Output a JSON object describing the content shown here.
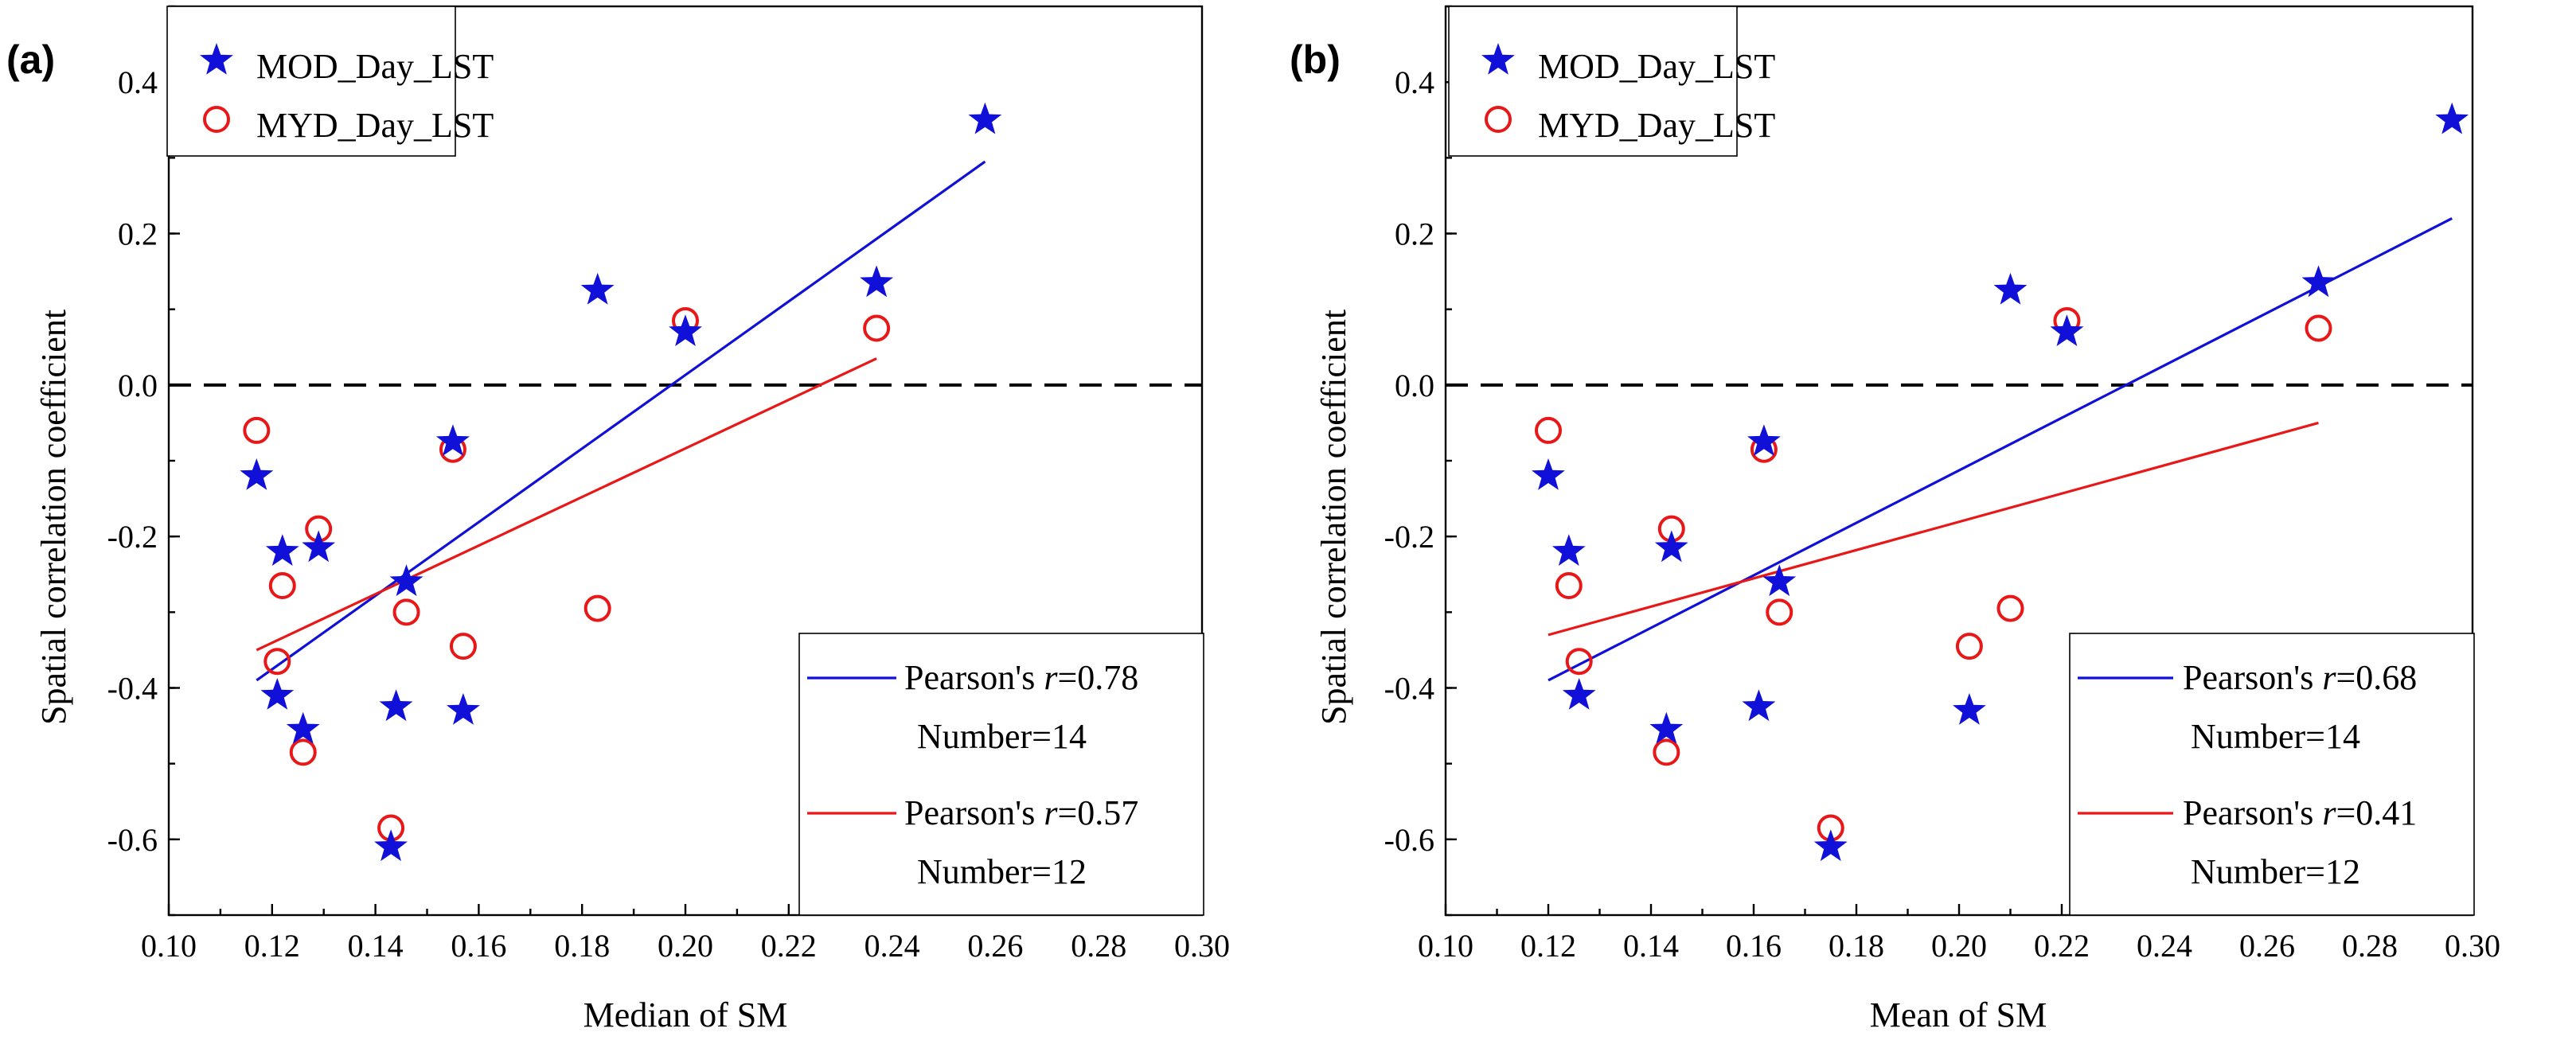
{
  "chart_data": [
    {
      "panel_label": "(a)",
      "type": "scatter",
      "xlabel": "Median of SM",
      "ylabel": "Spatial correlation coefficient",
      "xlim": [
        0.1,
        0.3
      ],
      "ylim": [
        -0.7,
        0.5
      ],
      "xticks": [
        0.1,
        0.12,
        0.14,
        0.16,
        0.18,
        0.2,
        0.22,
        0.24,
        0.26,
        0.28,
        0.3
      ],
      "xtick_labels": [
        "0.10",
        "0.12",
        "0.14",
        "0.16",
        "0.18",
        "0.20",
        "0.22",
        "0.24",
        "0.26",
        "0.28",
        "0.30"
      ],
      "yticks": [
        -0.6,
        -0.4,
        -0.2,
        0.0,
        0.2,
        0.4
      ],
      "ytick_labels": [
        "-0.6",
        "-0.4",
        "-0.2",
        "0.0",
        "0.2",
        "0.4"
      ],
      "reference_line_y": 0.0,
      "series": [
        {
          "name": "MOD_Day_LST",
          "marker": "star",
          "color": "#1010d8",
          "x": [
            0.117,
            0.121,
            0.122,
            0.126,
            0.129,
            0.144,
            0.146,
            0.155,
            0.157,
            0.183,
            0.2,
            0.237,
            0.258,
            0.143
          ],
          "y": [
            -0.12,
            -0.41,
            -0.22,
            -0.455,
            -0.215,
            -0.425,
            -0.26,
            -0.075,
            -0.43,
            0.125,
            0.07,
            0.135,
            0.35,
            -0.61
          ]
        },
        {
          "name": "MYD_Day_LST",
          "marker": "circle",
          "color": "#e81818",
          "x": [
            0.117,
            0.121,
            0.122,
            0.126,
            0.129,
            0.143,
            0.146,
            0.155,
            0.157,
            0.183,
            0.2,
            0.237
          ],
          "y": [
            -0.06,
            -0.365,
            -0.265,
            -0.485,
            -0.19,
            -0.585,
            -0.3,
            -0.085,
            -0.345,
            -0.295,
            0.085,
            0.075
          ]
        }
      ],
      "fits": [
        {
          "series": "MOD_Day_LST",
          "color": "#1010d8",
          "x": [
            0.117,
            0.258
          ],
          "y": [
            -0.39,
            0.295
          ],
          "label": "Pearson's ",
          "r_symbol": "r",
          "r_value": "=0.78",
          "number_label": "Number=14"
        },
        {
          "series": "MYD_Day_LST",
          "color": "#e81818",
          "x": [
            0.117,
            0.237
          ],
          "y": [
            -0.35,
            0.035
          ],
          "label": "Pearson's ",
          "r_symbol": "r",
          "r_value": "=0.57",
          "number_label": "Number=12"
        }
      ]
    },
    {
      "panel_label": "(b)",
      "type": "scatter",
      "xlabel": "Mean of SM",
      "ylabel": "Spatial correlation coefficient",
      "xlim": [
        0.1,
        0.3
      ],
      "ylim": [
        -0.7,
        0.5
      ],
      "xticks": [
        0.1,
        0.12,
        0.14,
        0.16,
        0.18,
        0.2,
        0.22,
        0.24,
        0.26,
        0.28,
        0.3
      ],
      "xtick_labels": [
        "0.10",
        "0.12",
        "0.14",
        "0.16",
        "0.18",
        "0.20",
        "0.22",
        "0.24",
        "0.26",
        "0.28",
        "0.30"
      ],
      "yticks": [
        -0.6,
        -0.4,
        -0.2,
        0.0,
        0.2,
        0.4
      ],
      "ytick_labels": [
        "-0.6",
        "-0.4",
        "-0.2",
        "0.0",
        "0.2",
        "0.4"
      ],
      "reference_line_y": 0.0,
      "series": [
        {
          "name": "MOD_Day_LST",
          "marker": "star",
          "color": "#1010d8",
          "x": [
            0.12,
            0.124,
            0.126,
            0.143,
            0.144,
            0.161,
            0.162,
            0.165,
            0.175,
            0.202,
            0.21,
            0.221,
            0.27,
            0.296
          ],
          "y": [
            -0.12,
            -0.22,
            -0.41,
            -0.455,
            -0.215,
            -0.425,
            -0.075,
            -0.26,
            -0.61,
            -0.43,
            0.125,
            0.07,
            0.135,
            0.35
          ]
        },
        {
          "name": "MYD_Day_LST",
          "marker": "circle",
          "color": "#e81818",
          "x": [
            0.12,
            0.124,
            0.126,
            0.143,
            0.144,
            0.162,
            0.165,
            0.175,
            0.202,
            0.21,
            0.221,
            0.27
          ],
          "y": [
            -0.06,
            -0.265,
            -0.365,
            -0.485,
            -0.19,
            -0.085,
            -0.3,
            -0.585,
            -0.345,
            -0.295,
            0.085,
            0.075
          ]
        }
      ],
      "fits": [
        {
          "series": "MOD_Day_LST",
          "color": "#1010d8",
          "x": [
            0.12,
            0.296
          ],
          "y": [
            -0.39,
            0.22
          ],
          "label": "Pearson's ",
          "r_symbol": "r",
          "r_value": "=0.68",
          "number_label": "Number=14"
        },
        {
          "series": "MYD_Day_LST",
          "color": "#e81818",
          "x": [
            0.12,
            0.27
          ],
          "y": [
            -0.33,
            -0.05
          ],
          "label": "Pearson's ",
          "r_symbol": "r",
          "r_value": "=0.41",
          "number_label": "Number=12"
        }
      ]
    }
  ]
}
